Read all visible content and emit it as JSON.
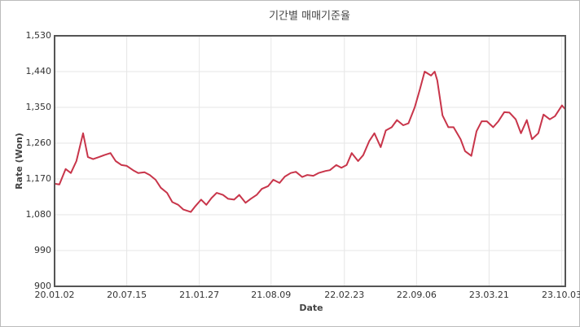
{
  "chart_data": {
    "type": "line",
    "title": "기간별 매매기준율",
    "x_label": "Date",
    "y_label": "Rate (Won)",
    "x": [
      "2020-01-02",
      "2020-01-15",
      "2020-02-01",
      "2020-02-15",
      "2020-03-01",
      "2020-03-19",
      "2020-04-01",
      "2020-04-15",
      "2020-05-01",
      "2020-05-15",
      "2020-06-01",
      "2020-06-15",
      "2020-07-01",
      "2020-07-15",
      "2020-08-01",
      "2020-08-15",
      "2020-09-01",
      "2020-09-15",
      "2020-10-01",
      "2020-10-15",
      "2020-11-01",
      "2020-11-15",
      "2020-12-01",
      "2020-12-15",
      "2021-01-04",
      "2021-01-15",
      "2021-02-01",
      "2021-02-15",
      "2021-03-01",
      "2021-03-15",
      "2021-04-01",
      "2021-04-15",
      "2021-05-01",
      "2021-05-15",
      "2021-06-01",
      "2021-06-15",
      "2021-07-01",
      "2021-07-15",
      "2021-08-01",
      "2021-08-15",
      "2021-09-01",
      "2021-09-15",
      "2021-10-01",
      "2021-10-15",
      "2021-11-01",
      "2021-11-15",
      "2021-12-01",
      "2021-12-15",
      "2022-01-03",
      "2022-01-15",
      "2022-02-01",
      "2022-02-15",
      "2022-03-01",
      "2022-03-15",
      "2022-04-01",
      "2022-04-15",
      "2022-05-01",
      "2022-05-15",
      "2022-06-01",
      "2022-06-15",
      "2022-07-01",
      "2022-07-15",
      "2022-08-01",
      "2022-08-15",
      "2022-09-01",
      "2022-09-15",
      "2022-09-28",
      "2022-10-15",
      "2022-10-25",
      "2022-11-01",
      "2022-11-15",
      "2022-12-01",
      "2022-12-15",
      "2023-01-03",
      "2023-01-15",
      "2023-02-01",
      "2023-02-15",
      "2023-03-01",
      "2023-03-15",
      "2023-04-01",
      "2023-04-15",
      "2023-05-01",
      "2023-05-15",
      "2023-06-01",
      "2023-06-15",
      "2023-07-01",
      "2023-07-15",
      "2023-08-01",
      "2023-08-15",
      "2023-09-01",
      "2023-09-15",
      "2023-10-04",
      "2023-10-13"
    ],
    "series": [
      {
        "name": "Rate",
        "color": "#c8354a",
        "values": [
          1158,
          1156,
          1195,
          1185,
          1215,
          1285,
          1225,
          1220,
          1225,
          1230,
          1235,
          1215,
          1205,
          1203,
          1192,
          1185,
          1187,
          1180,
          1168,
          1148,
          1135,
          1112,
          1105,
          1093,
          1087,
          1100,
          1118,
          1105,
          1122,
          1135,
          1130,
          1120,
          1118,
          1130,
          1110,
          1120,
          1130,
          1145,
          1152,
          1168,
          1160,
          1176,
          1185,
          1188,
          1175,
          1180,
          1178,
          1185,
          1190,
          1192,
          1205,
          1198,
          1205,
          1235,
          1215,
          1230,
          1265,
          1285,
          1250,
          1292,
          1300,
          1318,
          1305,
          1310,
          1350,
          1395,
          1440,
          1430,
          1440,
          1418,
          1330,
          1300,
          1300,
          1270,
          1240,
          1228,
          1290,
          1315,
          1315,
          1300,
          1315,
          1338,
          1337,
          1320,
          1285,
          1318,
          1270,
          1285,
          1332,
          1320,
          1328,
          1355,
          1345
        ]
      }
    ],
    "xlim": [
      "2020-01-02",
      "2023-10-13"
    ],
    "xticks": [
      {
        "value": "2020-01-02",
        "label": "20.01.02"
      },
      {
        "value": "2020-07-15",
        "label": "20.07.15"
      },
      {
        "value": "2021-01-27",
        "label": "21.01.27"
      },
      {
        "value": "2021-08-09",
        "label": "21.08.09"
      },
      {
        "value": "2022-02-23",
        "label": "22.02.23"
      },
      {
        "value": "2022-09-06",
        "label": "22.09.06"
      },
      {
        "value": "2023-03-21",
        "label": "23.03.21"
      },
      {
        "value": "2023-10-03",
        "label": "23.10.03"
      }
    ],
    "ylim": [
      900,
      1530
    ],
    "yticks": [
      900,
      {
        "value": 990,
        "label": "990"
      },
      {
        "value": 1080,
        "label": "1,080"
      },
      {
        "value": 1170,
        "label": "1,170"
      },
      {
        "value": 1260,
        "label": "1,260"
      },
      {
        "value": 1350,
        "label": "1,350"
      },
      {
        "value": 1440,
        "label": "1,440"
      },
      {
        "value": 1530,
        "label": "1,530"
      }
    ],
    "grid": true
  }
}
